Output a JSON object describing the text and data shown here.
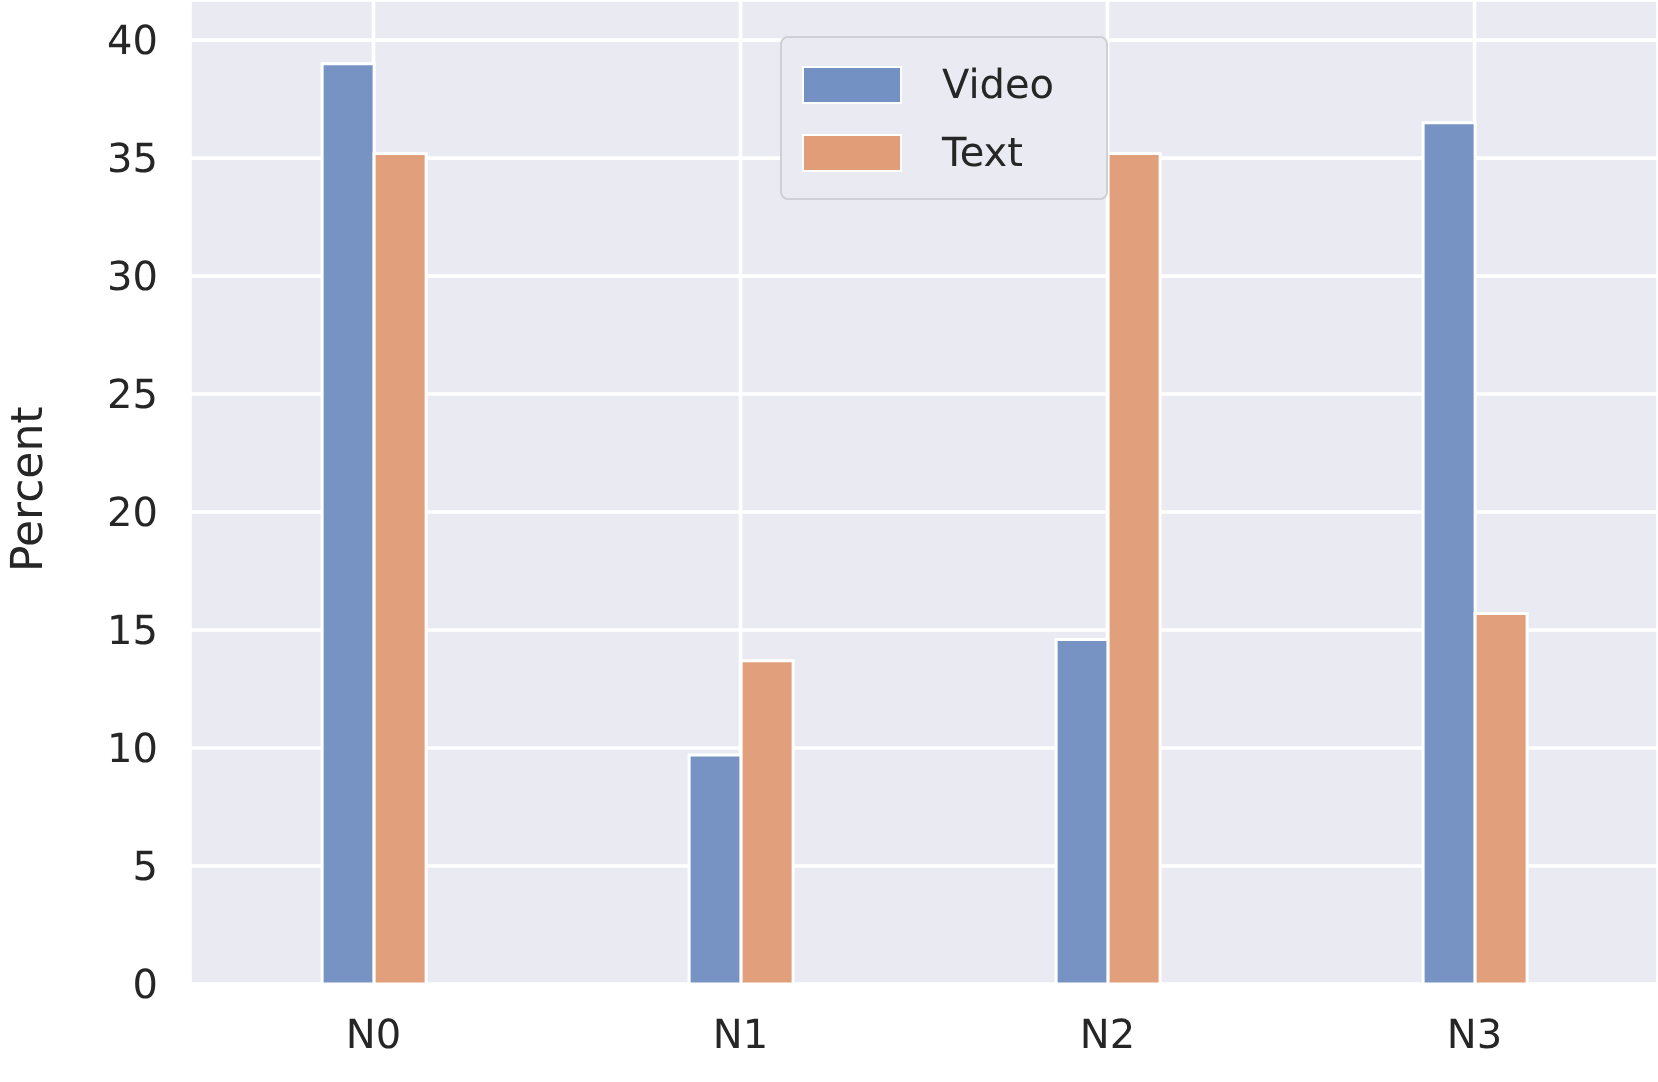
{
  "chart_data": {
    "type": "bar",
    "ylabel": "Percent",
    "categories": [
      "N0",
      "N1",
      "N2",
      "N3"
    ],
    "series": [
      {
        "name": "Video",
        "color": "#7391c2",
        "values": [
          39.0,
          9.7,
          14.6,
          36.5
        ]
      },
      {
        "name": "Text",
        "color": "#e09d78",
        "values": [
          35.2,
          13.7,
          35.2,
          15.7
        ]
      }
    ],
    "ylim": [
      0,
      41.7
    ],
    "yticks": [
      0,
      5,
      10,
      15,
      20,
      25,
      30,
      35,
      40
    ],
    "grid": true,
    "legend": "top"
  }
}
